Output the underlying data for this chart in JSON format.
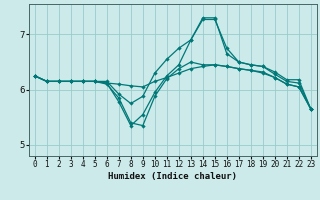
{
  "xlabel": "Humidex (Indice chaleur)",
  "background_color": "#cceaea",
  "grid_color": "#99cccc",
  "line_color": "#007878",
  "xlim": [
    -0.5,
    23.5
  ],
  "ylim": [
    4.8,
    7.55
  ],
  "yticks": [
    5,
    6,
    7
  ],
  "xticks": [
    0,
    1,
    2,
    3,
    4,
    5,
    6,
    7,
    8,
    9,
    10,
    11,
    12,
    13,
    14,
    15,
    16,
    17,
    18,
    19,
    20,
    21,
    22,
    23
  ],
  "series": [
    {
      "x": [
        0,
        1,
        2,
        3,
        4,
        5,
        6,
        7,
        8,
        9,
        10,
        11,
        12,
        13,
        14,
        15,
        16,
        17,
        18,
        19,
        20,
        21,
        22,
        23
      ],
      "y": [
        6.25,
        6.15,
        6.15,
        6.15,
        6.15,
        6.15,
        6.15,
        5.92,
        5.75,
        5.88,
        6.3,
        6.55,
        6.75,
        6.9,
        7.3,
        7.3,
        6.65,
        6.5,
        6.45,
        6.42,
        6.32,
        6.18,
        6.18,
        5.65
      ]
    },
    {
      "x": [
        0,
        1,
        2,
        3,
        4,
        5,
        6,
        7,
        8,
        9,
        10,
        11,
        12,
        13,
        14,
        15,
        16,
        17,
        18,
        19,
        20,
        21,
        22,
        23
      ],
      "y": [
        6.25,
        6.15,
        6.15,
        6.15,
        6.15,
        6.15,
        6.12,
        5.78,
        5.35,
        5.55,
        5.95,
        6.25,
        6.45,
        6.9,
        7.27,
        7.27,
        6.75,
        6.5,
        6.45,
        6.42,
        6.28,
        6.15,
        6.12,
        5.65
      ]
    },
    {
      "x": [
        0,
        1,
        2,
        3,
        4,
        5,
        6,
        7,
        8,
        9,
        10,
        11,
        12,
        13,
        14,
        15,
        16,
        17,
        18,
        19,
        20,
        21,
        22,
        23
      ],
      "y": [
        6.25,
        6.15,
        6.15,
        6.15,
        6.15,
        6.15,
        6.1,
        5.85,
        5.4,
        5.35,
        5.88,
        6.2,
        6.38,
        6.5,
        6.45,
        6.45,
        6.42,
        6.38,
        6.35,
        6.32,
        6.22,
        6.1,
        6.05,
        5.65
      ]
    },
    {
      "x": [
        0,
        1,
        2,
        3,
        4,
        5,
        6,
        7,
        8,
        9,
        10,
        11,
        12,
        13,
        14,
        15,
        16,
        17,
        18,
        19,
        20,
        21,
        22,
        23
      ],
      "y": [
        6.25,
        6.15,
        6.15,
        6.15,
        6.15,
        6.15,
        6.12,
        6.1,
        6.07,
        6.05,
        6.15,
        6.22,
        6.3,
        6.38,
        6.42,
        6.45,
        6.42,
        6.38,
        6.35,
        6.3,
        6.22,
        6.1,
        6.05,
        5.65
      ]
    }
  ]
}
